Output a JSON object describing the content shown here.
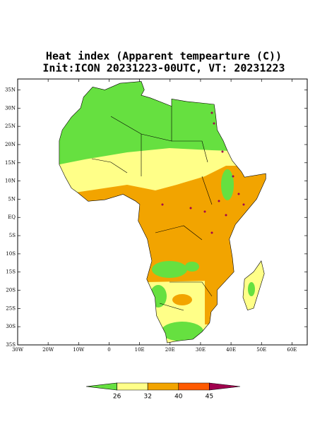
{
  "title": [
    "Heat index (Apparent tempearture (C))",
    "Init:ICON 20231223-00UTC, VT: 20231223"
  ],
  "map": {
    "lonlim": [
      -30,
      65
    ],
    "latlim": [
      -35,
      38
    ],
    "lat_ticks": [
      {
        "value": 35,
        "label": "35N"
      },
      {
        "value": 30,
        "label": "30N"
      },
      {
        "value": 25,
        "label": "25N"
      },
      {
        "value": 20,
        "label": "20N"
      },
      {
        "value": 15,
        "label": "15N"
      },
      {
        "value": 10,
        "label": "10N"
      },
      {
        "value": 5,
        "label": "5N"
      },
      {
        "value": 0,
        "label": "EQ"
      },
      {
        "value": -5,
        "label": "5S"
      },
      {
        "value": -10,
        "label": "10S"
      },
      {
        "value": -15,
        "label": "15S"
      },
      {
        "value": -20,
        "label": "20S"
      },
      {
        "value": -25,
        "label": "25S"
      },
      {
        "value": -30,
        "label": "30S"
      },
      {
        "value": -35,
        "label": "35S"
      }
    ],
    "lon_ticks": [
      {
        "value": -30,
        "label": "30W"
      },
      {
        "value": -20,
        "label": "20W"
      },
      {
        "value": -10,
        "label": "10W"
      },
      0,
      {
        "value": 10,
        "label": "10E"
      },
      {
        "value": 20,
        "label": "20E"
      },
      {
        "value": 30,
        "label": "30E"
      },
      {
        "value": 40,
        "label": "40E"
      },
      {
        "value": 50,
        "label": "50E"
      },
      {
        "value": 60,
        "label": "60E"
      }
    ]
  },
  "colorbar": {
    "levels": [
      26,
      32,
      40,
      45
    ],
    "colors": [
      "#66e040",
      "#ffff88",
      "#f2a400",
      "#ff5a00",
      "#a0004e"
    ]
  }
}
